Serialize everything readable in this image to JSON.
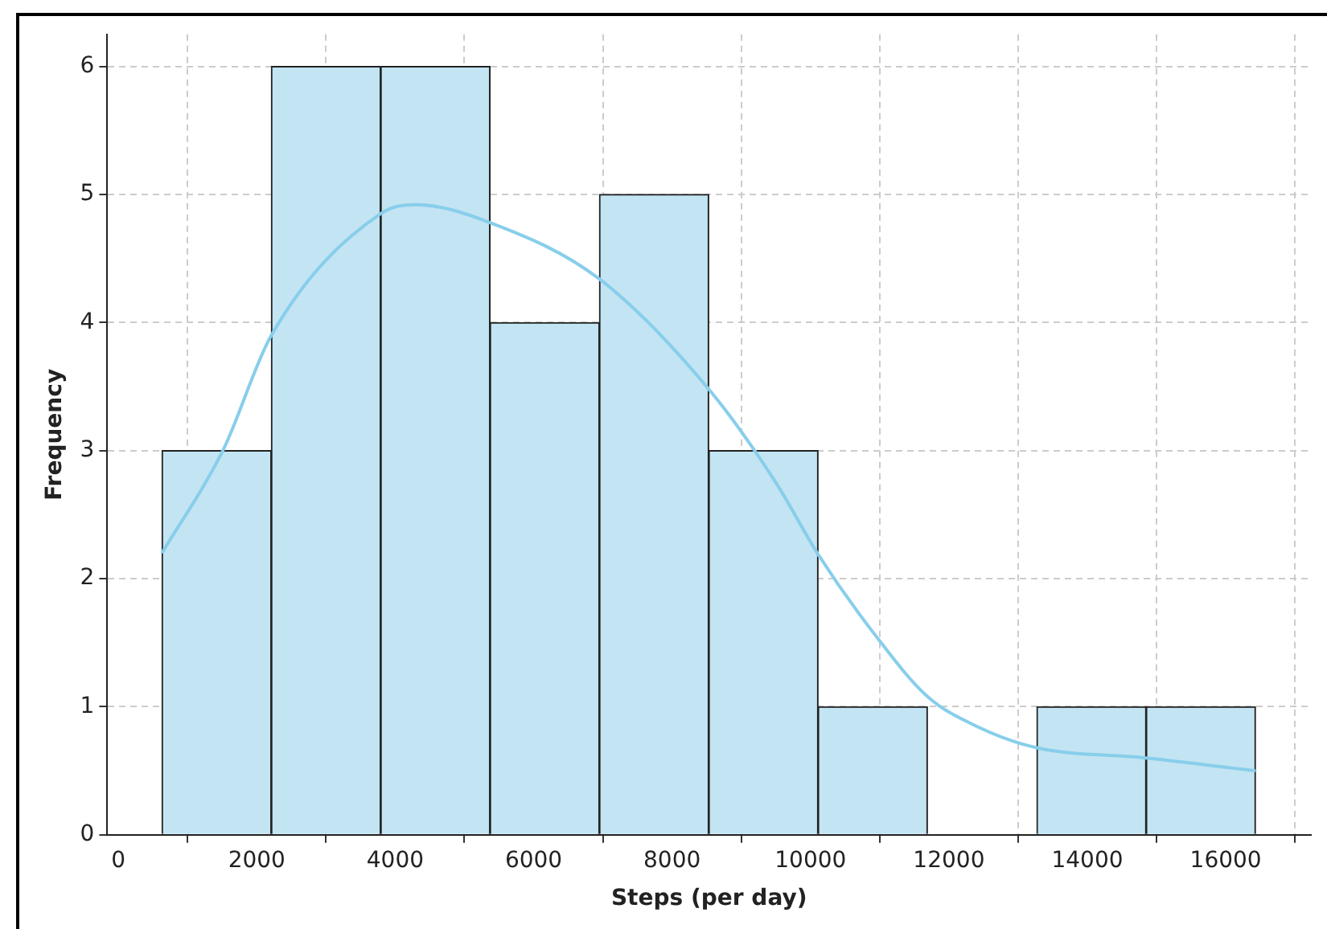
{
  "chart_data": {
    "type": "histogram",
    "xlabel": "Steps (per day)",
    "ylabel": "Frequency",
    "xlim": [
      -160,
      17230
    ],
    "ylim": [
      0,
      6.25
    ],
    "xticks": [
      0,
      2000,
      4000,
      6000,
      8000,
      10000,
      12000,
      14000,
      16000
    ],
    "yticks": [
      0,
      1,
      2,
      3,
      4,
      5,
      6
    ],
    "grid": true,
    "legend": false,
    "series": [
      {
        "color": "#c3e4f3",
        "bins": [
          630,
          2210,
          3790,
          5370,
          6950,
          8530,
          10110,
          11690,
          13270,
          14850,
          16430
        ],
        "values": [
          3,
          6,
          6,
          4,
          5,
          3,
          1,
          0,
          1,
          1
        ]
      },
      {
        "type": "line",
        "color": "#87ceeb",
        "x": [
          630,
          1510,
          2210,
          3790,
          4300,
          5370,
          6950,
          8530,
          9500,
          10110,
          10920,
          11690,
          12430,
          13270,
          14850,
          16430
        ],
        "values": [
          2.2,
          3.0,
          3.9,
          4.85,
          4.92,
          4.78,
          4.34,
          3.48,
          2.75,
          2.19,
          1.57,
          1.08,
          0.84,
          0.68,
          0.6,
          0.5
        ]
      }
    ]
  }
}
